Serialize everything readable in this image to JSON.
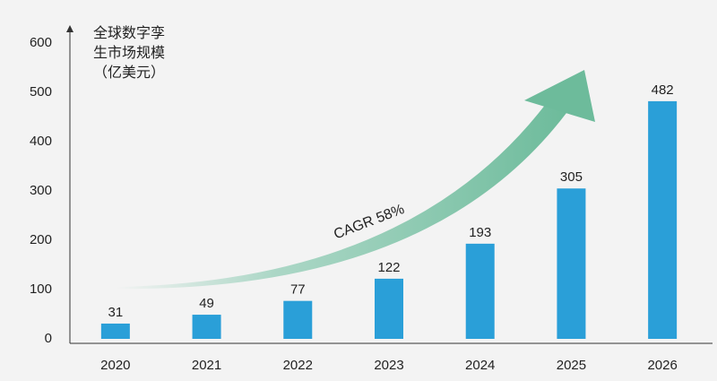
{
  "chart_data": {
    "type": "bar",
    "y_label": "全球数字孪生市场规模（亿美元）",
    "annotation": "CAGR 58%",
    "categories": [
      "2020",
      "2021",
      "2022",
      "2023",
      "2024",
      "2025",
      "2026"
    ],
    "values": [
      31,
      49,
      77,
      122,
      193,
      305,
      482
    ],
    "color": "#2a9fd8",
    "ylim": [
      0,
      600
    ],
    "yticks": [
      0,
      100,
      200,
      300,
      400,
      500,
      600
    ],
    "grid": false
  }
}
